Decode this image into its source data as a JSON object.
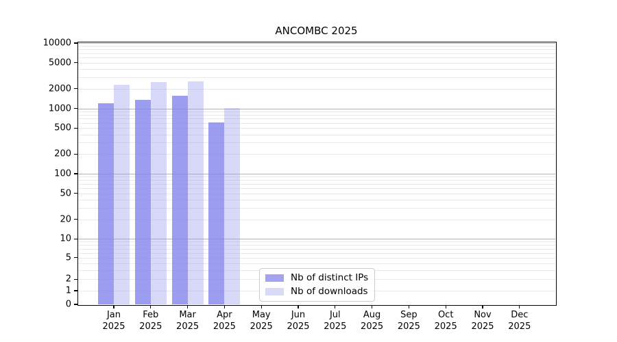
{
  "title": "ANCOMBC 2025",
  "colors": {
    "bar_distinct_ips": "#a3a3f2",
    "bar_downloads": "#d9d9f9",
    "grid_major": "#b4b4b4",
    "grid_minor": "#e9e9e9",
    "axis": "#000000",
    "legend_border": "#cccccc",
    "background": "#ffffff"
  },
  "legend": {
    "items": [
      {
        "label": "Nb of distinct IPs",
        "swatch_color": "#a3a3f0"
      },
      {
        "label": "Nb of downloads",
        "swatch_color": "#d9d9f8"
      }
    ]
  },
  "chart_data": {
    "type": "bar",
    "title": "ANCOMBC 2025",
    "categories": [
      "Jan 2025",
      "Feb 2025",
      "Mar 2025",
      "Apr 2025",
      "May 2025",
      "Jun 2025",
      "Jul 2025",
      "Aug 2025",
      "Sep 2025",
      "Oct 2025",
      "Nov 2025",
      "Dec 2025"
    ],
    "series": [
      {
        "name": "Nb of distinct IPs",
        "color": "#a3a3f0",
        "values": [
          1200,
          1350,
          1580,
          605,
          0,
          0,
          0,
          0,
          0,
          0,
          0,
          0
        ]
      },
      {
        "name": "Nb of downloads",
        "color": "#d9d9f8",
        "values": [
          2280,
          2530,
          2610,
          1010,
          0,
          0,
          0,
          0,
          0,
          0,
          0,
          0
        ]
      }
    ],
    "xlabel": "",
    "ylabel": "",
    "yscale": "log-like (asinh, linear below 1)",
    "ylim": [
      0,
      10000
    ],
    "yticks": [
      0,
      1,
      2,
      5,
      10,
      20,
      50,
      100,
      200,
      500,
      1000,
      2000,
      5000,
      10000
    ],
    "grid": "horizontal, minor log gridlines; major lines at powers of 10",
    "legend_position": "inside lower-center"
  }
}
